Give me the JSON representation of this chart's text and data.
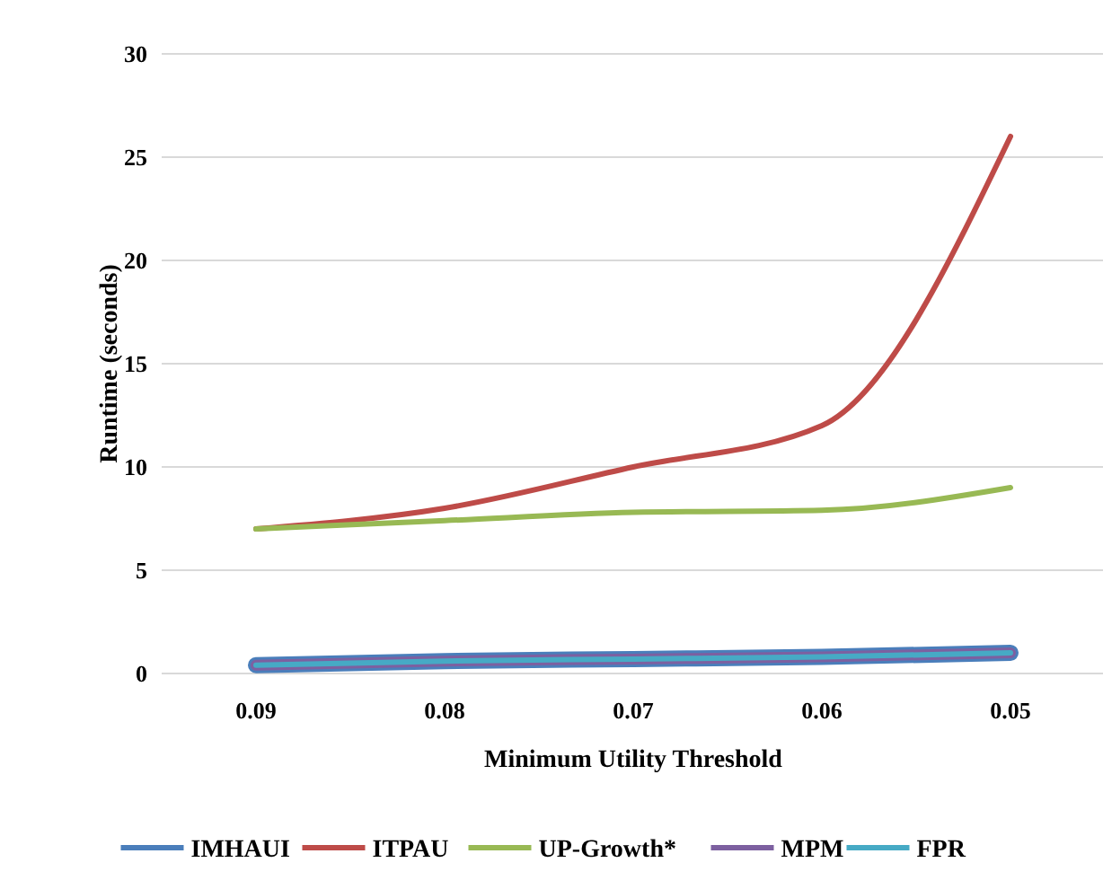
{
  "chart_data": {
    "type": "line",
    "xlabel": "Minimum Utility Threshold",
    "ylabel": "Runtime (seconds)",
    "categories": [
      "0.09",
      "0.08",
      "0.07",
      "0.06",
      "0.05"
    ],
    "series": [
      {
        "name": "IMHAUI",
        "color": "#4a7ebb",
        "values": [
          0.4,
          0.6,
          0.7,
          0.8,
          1.0
        ]
      },
      {
        "name": "ITPAU",
        "color": "#be4b48",
        "values": [
          7,
          8,
          10,
          12,
          26
        ]
      },
      {
        "name": "UP-Growth*",
        "color": "#98b954",
        "values": [
          7,
          7.4,
          7.8,
          7.9,
          9
        ]
      },
      {
        "name": "MPM",
        "color": "#7d60a0",
        "values": [
          0.4,
          0.6,
          0.7,
          0.8,
          1.0
        ]
      },
      {
        "name": "FPR",
        "color": "#46aac5",
        "values": [
          0.4,
          0.6,
          0.7,
          0.8,
          1.0
        ]
      }
    ],
    "ylim": [
      0,
      30
    ],
    "yticks": [
      0,
      5,
      10,
      15,
      20,
      25,
      30
    ],
    "grid": "y",
    "legend": "bottom",
    "marker": "none",
    "line_style": "solid"
  }
}
